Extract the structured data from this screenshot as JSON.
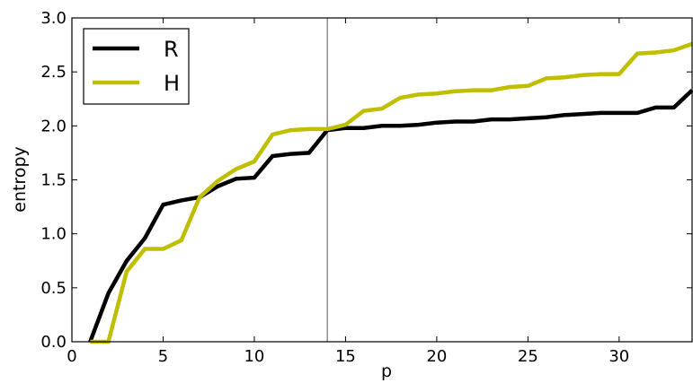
{
  "chart_data": {
    "type": "line",
    "xlabel": "p",
    "ylabel": "entropy",
    "xlim": [
      0,
      34
    ],
    "ylim": [
      0,
      3.0
    ],
    "xticks": [
      0,
      5,
      10,
      15,
      20,
      25,
      30
    ],
    "yticks": [
      0.0,
      0.5,
      1.0,
      1.5,
      2.0,
      2.5,
      3.0
    ],
    "xtick_labels": [
      "0",
      "5",
      "10",
      "15",
      "20",
      "25",
      "30"
    ],
    "ytick_labels": [
      "0.0",
      "0.5",
      "1.0",
      "1.5",
      "2.0",
      "2.5",
      "3.0"
    ],
    "grid": false,
    "legend_position": "top-left",
    "vline_x": 14,
    "series": [
      {
        "name": "R",
        "color": "#000000",
        "x": [
          1,
          2,
          3,
          4,
          5,
          6,
          7,
          8,
          9,
          10,
          11,
          12,
          13,
          14,
          15,
          16,
          17,
          18,
          19,
          20,
          21,
          22,
          23,
          24,
          25,
          26,
          27,
          28,
          29,
          30,
          31,
          32,
          33,
          34
        ],
        "y": [
          0.0,
          0.45,
          0.75,
          0.96,
          1.27,
          1.31,
          1.34,
          1.44,
          1.51,
          1.52,
          1.72,
          1.74,
          1.75,
          1.96,
          1.98,
          1.98,
          2.0,
          2.0,
          2.01,
          2.03,
          2.04,
          2.04,
          2.06,
          2.06,
          2.07,
          2.08,
          2.1,
          2.11,
          2.12,
          2.12,
          2.12,
          2.17,
          2.17,
          2.33
        ]
      },
      {
        "name": "H",
        "color": "#bfbf00",
        "x": [
          1,
          2,
          3,
          4,
          5,
          6,
          7,
          8,
          9,
          10,
          11,
          12,
          13,
          14,
          15,
          16,
          17,
          18,
          19,
          20,
          21,
          22,
          23,
          24,
          25,
          26,
          27,
          28,
          29,
          30,
          31,
          32,
          33,
          34
        ],
        "y": [
          0.0,
          0.0,
          0.65,
          0.86,
          0.86,
          0.94,
          1.34,
          1.49,
          1.6,
          1.67,
          1.92,
          1.96,
          1.97,
          1.97,
          2.01,
          2.14,
          2.16,
          2.26,
          2.29,
          2.3,
          2.32,
          2.33,
          2.33,
          2.36,
          2.37,
          2.44,
          2.45,
          2.47,
          2.48,
          2.48,
          2.67,
          2.68,
          2.7,
          2.76
        ]
      }
    ]
  }
}
